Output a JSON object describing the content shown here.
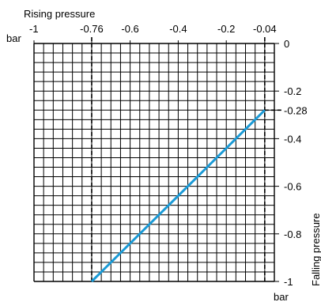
{
  "chart_data": {
    "type": "line",
    "x_axis": {
      "label": "Rising pressure",
      "unit": "bar",
      "range": [
        -1,
        0
      ],
      "position": "top",
      "ticks": [
        -1,
        -0.76,
        -0.6,
        -0.4,
        -0.2,
        -0.04
      ],
      "tick_labels": [
        "-1",
        "-0.76",
        "-0.6",
        "-0.4",
        "-0.2",
        "-0.04"
      ]
    },
    "y_axis": {
      "label": "Falling pressure",
      "unit": "bar",
      "range": [
        -1,
        0
      ],
      "position": "right",
      "ticks": [
        0,
        -0.2,
        -0.28,
        -0.4,
        -0.6,
        -0.8,
        -1
      ],
      "tick_labels": [
        "0",
        "-0.2",
        "-0.28",
        "-0.4",
        "-0.6",
        "-0.8",
        "-1"
      ]
    },
    "grid": true,
    "series": [
      {
        "color": "#1a9ad6",
        "x": [
          -0.76,
          -0.04
        ],
        "y": [
          -1,
          -0.28
        ]
      }
    ],
    "reference_lines": [
      {
        "axis": "x",
        "value": -0.76,
        "style": "dashed"
      },
      {
        "axis": "x",
        "value": -0.04,
        "style": "dashed"
      },
      {
        "axis": "y",
        "value": -0.28,
        "style": "dashed"
      }
    ]
  }
}
